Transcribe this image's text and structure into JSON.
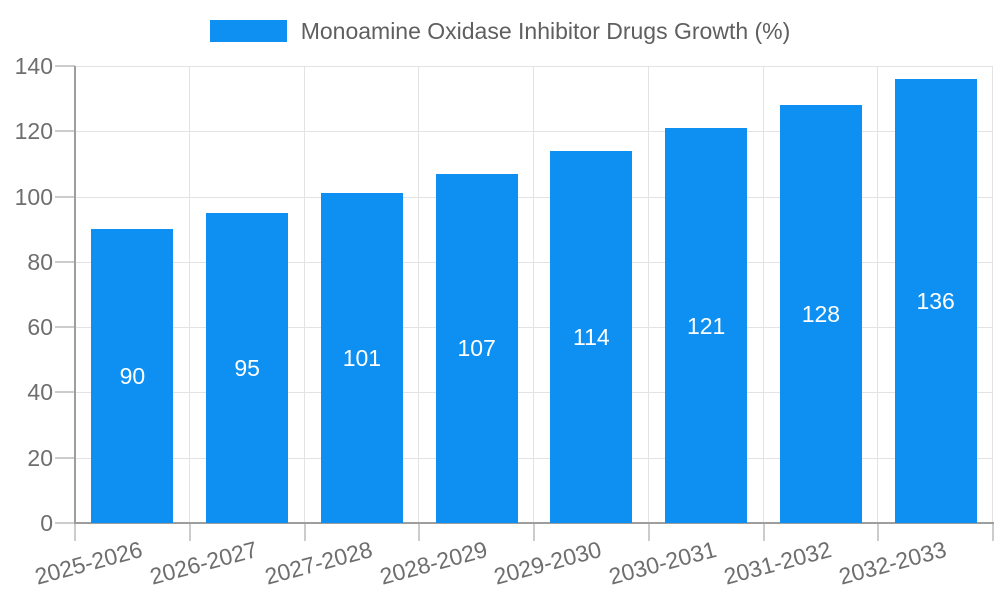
{
  "chart_data": {
    "type": "bar",
    "title": "Monoamine Oxidase Inhibitor Drugs Growth (%)",
    "categories": [
      "2025-2026",
      "2026-2027",
      "2027-2028",
      "2028-2029",
      "2029-2030",
      "2030-2031",
      "2031-2032",
      "2032-2033"
    ],
    "values": [
      90,
      95,
      101,
      107,
      114,
      121,
      128,
      136
    ],
    "xlabel": "",
    "ylabel": "",
    "ylim": [
      0,
      140
    ],
    "yticks": [
      0,
      20,
      40,
      60,
      80,
      100,
      120,
      140
    ],
    "grid": true,
    "bar_value_labels": true,
    "x_label_rotation_deg": -15,
    "legend_position": "top-center",
    "colors": {
      "bar": "#0e90f2",
      "bar_label": "#ffffff",
      "tick_text": "#6e6e6e",
      "legend_text": "#5f5f5f",
      "gridline": "#e3e3e3",
      "axis": "#9e9e9e",
      "tick_mark": "#cccccc",
      "background": "#ffffff"
    }
  }
}
